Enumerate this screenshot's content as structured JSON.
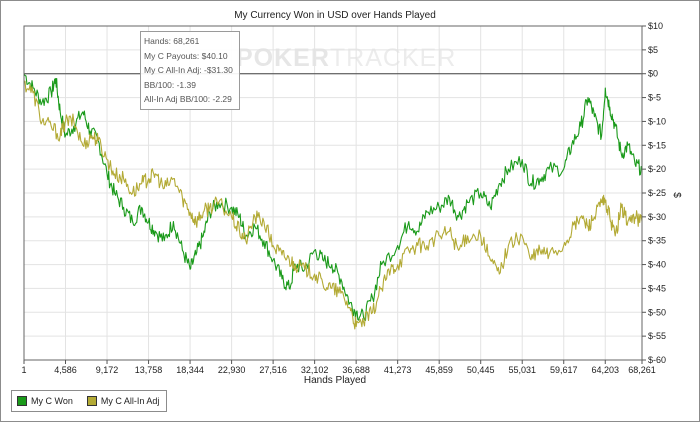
{
  "chart_data": {
    "type": "line",
    "title": "My Currency Won in USD over Hands Played",
    "xlabel": "Hands Played",
    "ylabel": "$",
    "xlim": [
      1,
      68261
    ],
    "ylim": [
      -60,
      10
    ],
    "x_ticks": [
      "1",
      "4,586",
      "9,172",
      "13,758",
      "18,344",
      "22,930",
      "27,516",
      "32,102",
      "36,688",
      "41,273",
      "45,859",
      "50,445",
      "55,031",
      "59,617",
      "64,203",
      "68,261"
    ],
    "y_ticks": [
      "$10",
      "$5",
      "$0",
      "$-5",
      "$-10",
      "$-15",
      "$-20",
      "$-25",
      "$-30",
      "$-35",
      "$-40",
      "$-45",
      "$-50",
      "$-55",
      "$-60"
    ],
    "grid": true,
    "legend_position": "bottom-left",
    "series": [
      {
        "name": "My C Won",
        "color": "#1a9a1a",
        "points": [
          [
            1,
            0
          ],
          [
            1000,
            -3
          ],
          [
            2000,
            -6
          ],
          [
            3000,
            -4
          ],
          [
            3500,
            -1
          ],
          [
            4000,
            -8
          ],
          [
            4586,
            -13
          ],
          [
            5500,
            -11
          ],
          [
            6500,
            -8
          ],
          [
            7300,
            -12
          ],
          [
            8200,
            -14
          ],
          [
            9172,
            -21
          ],
          [
            10000,
            -25
          ],
          [
            11000,
            -28
          ],
          [
            12000,
            -31
          ],
          [
            13000,
            -28
          ],
          [
            13758,
            -31
          ],
          [
            14500,
            -33
          ],
          [
            15500,
            -35
          ],
          [
            16500,
            -31
          ],
          [
            17500,
            -37
          ],
          [
            18344,
            -41
          ],
          [
            19000,
            -38
          ],
          [
            19800,
            -34
          ],
          [
            20500,
            -29
          ],
          [
            21500,
            -27
          ],
          [
            22930,
            -28
          ],
          [
            23800,
            -30
          ],
          [
            24500,
            -34
          ],
          [
            25500,
            -32
          ],
          [
            26500,
            -35
          ],
          [
            27516,
            -39
          ],
          [
            28500,
            -43
          ],
          [
            29300,
            -45
          ],
          [
            30000,
            -40
          ],
          [
            31000,
            -41
          ],
          [
            32102,
            -37
          ],
          [
            33000,
            -39
          ],
          [
            34000,
            -40
          ],
          [
            35000,
            -43
          ],
          [
            36000,
            -48
          ],
          [
            36688,
            -50
          ],
          [
            37500,
            -51
          ],
          [
            38500,
            -47
          ],
          [
            39500,
            -40
          ],
          [
            41273,
            -36
          ],
          [
            42500,
            -31
          ],
          [
            43500,
            -33
          ],
          [
            44500,
            -29
          ],
          [
            45859,
            -28
          ],
          [
            47000,
            -26
          ],
          [
            48000,
            -30
          ],
          [
            49000,
            -27
          ],
          [
            50445,
            -25
          ],
          [
            51500,
            -28
          ],
          [
            52500,
            -23
          ],
          [
            53500,
            -20
          ],
          [
            55031,
            -18
          ],
          [
            56000,
            -23
          ],
          [
            57000,
            -22
          ],
          [
            58000,
            -20
          ],
          [
            59617,
            -20
          ],
          [
            60500,
            -15
          ],
          [
            61500,
            -11
          ],
          [
            62300,
            -5
          ],
          [
            63000,
            -9
          ],
          [
            63800,
            -13
          ],
          [
            64203,
            -3
          ],
          [
            64700,
            -7
          ],
          [
            65300,
            -11
          ],
          [
            66000,
            -17
          ],
          [
            66700,
            -15
          ],
          [
            67500,
            -19
          ],
          [
            68261,
            -20
          ]
        ]
      },
      {
        "name": "My C All-In Adj",
        "color": "#b3aa35",
        "points": [
          [
            1,
            -2
          ],
          [
            1000,
            -4
          ],
          [
            2000,
            -10
          ],
          [
            3000,
            -11
          ],
          [
            4000,
            -13
          ],
          [
            4586,
            -10
          ],
          [
            5500,
            -10
          ],
          [
            6500,
            -15
          ],
          [
            7500,
            -13
          ],
          [
            8200,
            -14
          ],
          [
            9172,
            -18
          ],
          [
            10000,
            -21
          ],
          [
            11000,
            -22
          ],
          [
            12000,
            -25
          ],
          [
            13000,
            -23
          ],
          [
            13758,
            -22
          ],
          [
            14500,
            -21
          ],
          [
            15500,
            -24
          ],
          [
            16500,
            -22
          ],
          [
            17500,
            -26
          ],
          [
            18344,
            -29
          ],
          [
            19000,
            -31
          ],
          [
            19800,
            -29
          ],
          [
            20500,
            -28
          ],
          [
            21500,
            -27
          ],
          [
            22930,
            -30
          ],
          [
            23800,
            -33
          ],
          [
            24500,
            -35
          ],
          [
            25500,
            -30
          ],
          [
            26500,
            -31
          ],
          [
            27516,
            -36
          ],
          [
            28500,
            -38
          ],
          [
            29300,
            -39
          ],
          [
            30000,
            -40
          ],
          [
            31000,
            -41
          ],
          [
            32102,
            -42
          ],
          [
            33000,
            -44
          ],
          [
            34000,
            -45
          ],
          [
            35000,
            -46
          ],
          [
            36000,
            -49
          ],
          [
            36688,
            -53
          ],
          [
            37500,
            -52
          ],
          [
            38500,
            -50
          ],
          [
            39500,
            -45
          ],
          [
            40500,
            -41
          ],
          [
            41273,
            -40
          ],
          [
            42500,
            -37
          ],
          [
            43500,
            -36
          ],
          [
            44500,
            -36
          ],
          [
            45859,
            -34
          ],
          [
            47000,
            -33
          ],
          [
            48000,
            -37
          ],
          [
            49000,
            -34
          ],
          [
            50445,
            -34
          ],
          [
            51500,
            -39
          ],
          [
            52500,
            -42
          ],
          [
            53500,
            -36
          ],
          [
            55031,
            -34
          ],
          [
            56000,
            -39
          ],
          [
            57000,
            -37
          ],
          [
            58000,
            -38
          ],
          [
            59617,
            -36
          ],
          [
            60500,
            -33
          ],
          [
            61500,
            -30
          ],
          [
            62300,
            -32
          ],
          [
            63000,
            -30
          ],
          [
            63800,
            -27
          ],
          [
            64203,
            -27
          ],
          [
            64700,
            -30
          ],
          [
            65300,
            -34
          ],
          [
            66000,
            -28
          ],
          [
            66700,
            -31
          ],
          [
            67500,
            -30
          ],
          [
            68261,
            -31
          ]
        ]
      }
    ]
  },
  "tooltip": {
    "line1": "Hands: 68,261",
    "line2": "My C Payouts: $40.10",
    "line3": "My C All-In Adj: -$31.30",
    "line4": "BB/100: -1.39",
    "line5": "All-In Adj BB/100: -2.29"
  },
  "watermark": {
    "bold": "POKER",
    "light": "TRACKER"
  },
  "legend": {
    "won_label": "My C Won",
    "adj_label": "My C All-In Adj",
    "won_color": "#1a9a1a",
    "adj_color": "#b3aa35"
  }
}
